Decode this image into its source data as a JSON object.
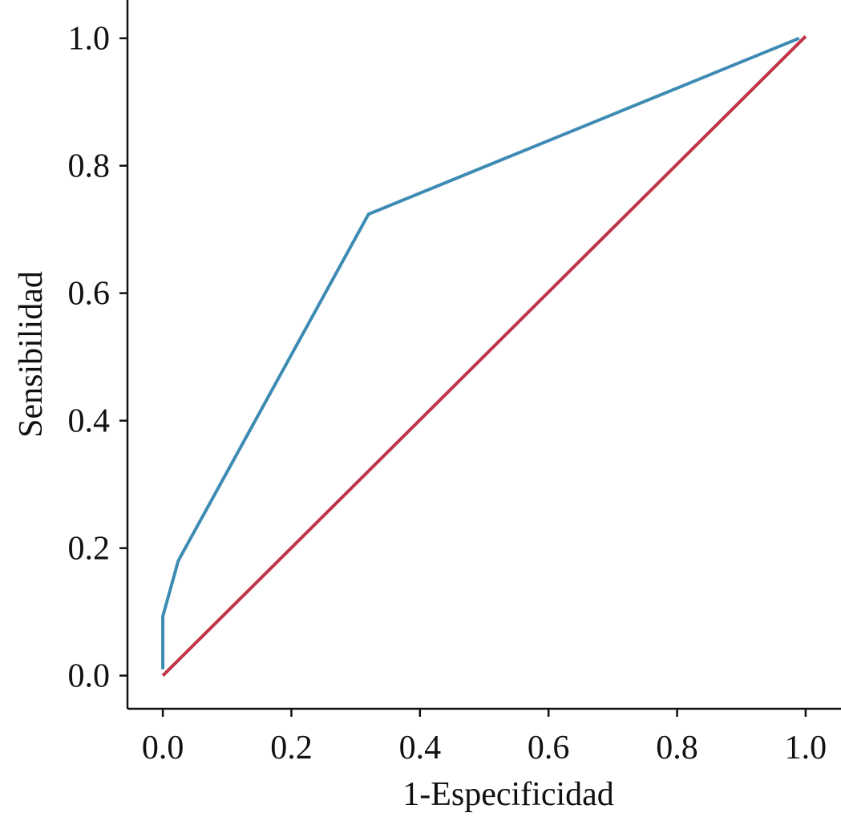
{
  "chart_data": {
    "type": "line",
    "title": "",
    "xlabel": "1-Especificidad",
    "ylabel": "Sensibilidad",
    "xlim": [
      -0.055,
      1.055
    ],
    "ylim": [
      -0.052,
      1.06
    ],
    "xticks": [
      0.0,
      0.2,
      0.4,
      0.6,
      0.8,
      1.0
    ],
    "xtick_labels": [
      "0.0",
      "0.2",
      "0.4",
      "0.6",
      "0.8",
      "1.0"
    ],
    "yticks": [
      0.0,
      0.2,
      0.4,
      0.6,
      0.8,
      1.0
    ],
    "ytick_labels": [
      "0.0",
      "0.2",
      "0.4",
      "0.6",
      "0.8",
      "1.0"
    ],
    "grid": false,
    "legend": "none",
    "series": [
      {
        "color": "#3d8bb3",
        "x": [
          0.0,
          0.0,
          0.024,
          0.32,
          0.99
        ],
        "y": [
          0.01,
          0.093,
          0.18,
          0.724,
          1.0
        ]
      },
      {
        "color": "#c0344a",
        "x": [
          0.0,
          1.0
        ],
        "y": [
          0.0,
          1.003
        ]
      }
    ]
  }
}
